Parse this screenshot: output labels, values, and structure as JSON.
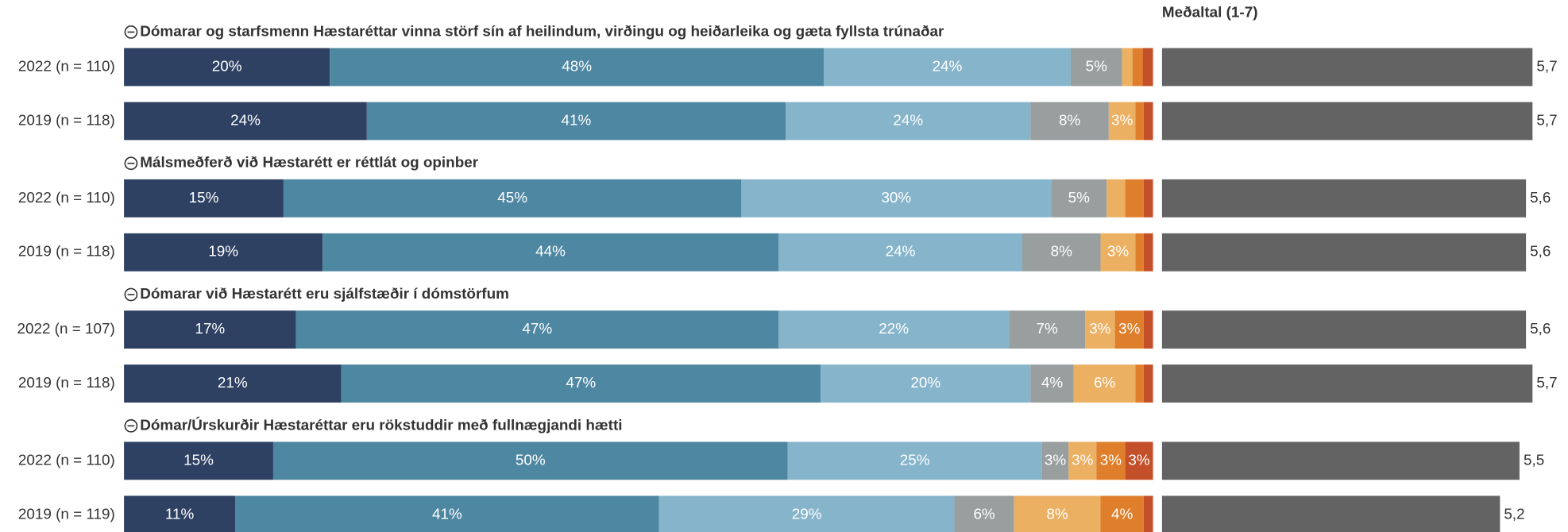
{
  "chart_data": {
    "type": "stacked-bar",
    "mean_title": "Meðaltal (1-7)",
    "colors": [
      "#2e4163",
      "#4e87a2",
      "#86b5cb",
      "#999e9f",
      "#ecb063",
      "#e07f2b",
      "#c4502a"
    ],
    "mean_color": "#636363",
    "xlim": [
      0,
      100
    ],
    "groups": [
      {
        "title": "Dómarar og starfsmenn Hæstaréttar vinna störf sín af heilindum, virðingu og heiðarleika og gæta fyllsta trúnaðar",
        "rows": [
          {
            "label": "2022 (n = 110)",
            "values": [
              20,
              48,
              24,
              5,
              1,
              1,
              1
            ],
            "value_labels": [
              "20%",
              "48%",
              "24%",
              "5%",
              null,
              null,
              null
            ],
            "mean": 5.7,
            "mean_label": "5,7"
          },
          {
            "label": "2019 (n = 118)",
            "values": [
              23.6,
              40.7,
              23.8,
              7.6,
              2.6,
              0.8,
              0.9
            ],
            "value_labels": [
              "24%",
              "41%",
              "24%",
              "8%",
              "3%",
              null,
              null
            ],
            "mean": 5.7,
            "mean_label": "5,7"
          }
        ]
      },
      {
        "title": "Málsmeðferð við Hæstarétt er réttlát og opinber",
        "rows": [
          {
            "label": "2022 (n = 110)",
            "values": [
              15.5,
              44.5,
              30.1,
              5.4,
              1.8,
              1.8,
              0.9
            ],
            "value_labels": [
              "15%",
              "45%",
              "30%",
              "5%",
              null,
              null,
              null
            ],
            "mean": 5.6,
            "mean_label": "5,6"
          },
          {
            "label": "2019 (n = 118)",
            "values": [
              19.3,
              44.3,
              23.7,
              7.6,
              3.4,
              0.8,
              0.9
            ],
            "value_labels": [
              "19%",
              "44%",
              "24%",
              "8%",
              "3%",
              null,
              null
            ],
            "mean": 5.6,
            "mean_label": "5,6"
          }
        ]
      },
      {
        "title": "Dómarar við Hæstarétt eru sjálfstæðir í dómstörfum",
        "rows": [
          {
            "label": "2022 (n = 107)",
            "values": [
              16.7,
              46.9,
              22.4,
              7.4,
              2.9,
              2.8,
              0.9
            ],
            "value_labels": [
              "17%",
              "47%",
              "22%",
              "7%",
              "3%",
              "3%",
              null
            ],
            "mean": 5.6,
            "mean_label": "5,6"
          },
          {
            "label": "2019 (n = 118)",
            "values": [
              21.1,
              46.6,
              20.4,
              4.2,
              6.0,
              0.8,
              0.9
            ],
            "value_labels": [
              "21%",
              "47%",
              "20%",
              "4%",
              "6%",
              null,
              null
            ],
            "mean": 5.7,
            "mean_label": "5,7"
          }
        ]
      },
      {
        "title": "Dómar/Úrskurðir Hæstaréttar eru rökstuddir með fullnægjandi hætti",
        "rows": [
          {
            "label": "2022 (n = 110)",
            "values": [
              14.5,
              50.0,
              24.7,
              2.6,
              2.7,
              2.8,
              2.7
            ],
            "value_labels": [
              "15%",
              "50%",
              "25%",
              "3%",
              "3%",
              "3%",
              "3%"
            ],
            "mean": 5.5,
            "mean_label": "5,5"
          },
          {
            "label": "2019 (n = 119)",
            "values": [
              10.8,
              41.2,
              28.7,
              5.8,
              8.4,
              4.2,
              0.9
            ],
            "value_labels": [
              "11%",
              "41%",
              "29%",
              "6%",
              "8%",
              "4%",
              null
            ],
            "mean": 5.2,
            "mean_label": "5,2"
          }
        ]
      }
    ]
  }
}
